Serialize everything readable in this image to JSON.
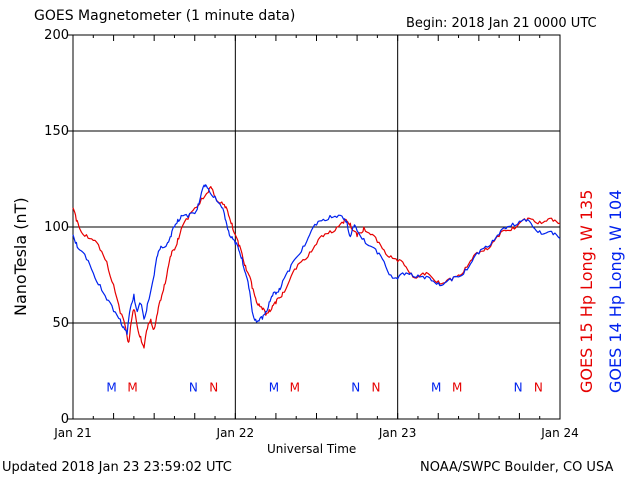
{
  "title": "GOES Magnetometer (1 minute data)",
  "begin_label": "Begin:  2018 Jan 21 0000 UTC",
  "updated": "Updated 2018 Jan 23 23:59:02 UTC",
  "credit": "NOAA/SWPC Boulder, CO USA",
  "colors": {
    "goes15": "#e60000",
    "goes14": "#0022ee",
    "grid": "#000000"
  },
  "chart_data": {
    "type": "line",
    "ylabel": "NanoTesla (nT)",
    "xlabel": "Universal Time",
    "ylim": [
      0,
      200
    ],
    "yticks": [
      "0",
      "50",
      "100",
      "150",
      "200"
    ],
    "xlim_hours": [
      0,
      72
    ],
    "xticks": [
      {
        "label": "Jan 21",
        "hour": 0
      },
      {
        "label": "Jan 22",
        "hour": 24
      },
      {
        "label": "Jan 23",
        "hour": 48
      },
      {
        "label": "Jan 24",
        "hour": 72
      }
    ],
    "grid": true,
    "series": [
      {
        "name": "GOES 15 Hp  Long. W 135",
        "color_key": "goes15",
        "points": [
          [
            0,
            110
          ],
          [
            0.5,
            103
          ],
          [
            1,
            99
          ],
          [
            2,
            96
          ],
          [
            3,
            93
          ],
          [
            4,
            88
          ],
          [
            5,
            82
          ],
          [
            6,
            70
          ],
          [
            7,
            55
          ],
          [
            7.8,
            47
          ],
          [
            8.2,
            40
          ],
          [
            8.5,
            48
          ],
          [
            9,
            57
          ],
          [
            9.5,
            48
          ],
          [
            10,
            43
          ],
          [
            10.5,
            37
          ],
          [
            11,
            47
          ],
          [
            11.5,
            52
          ],
          [
            12,
            47
          ],
          [
            12.5,
            55
          ],
          [
            13,
            62
          ],
          [
            13.5,
            70
          ],
          [
            14,
            78
          ],
          [
            14.5,
            85
          ],
          [
            15,
            88
          ],
          [
            15.5,
            94
          ],
          [
            16,
            99
          ],
          [
            17,
            104
          ],
          [
            18,
            110
          ],
          [
            19,
            115
          ],
          [
            20,
            118
          ],
          [
            20.5,
            120
          ],
          [
            21,
            116
          ],
          [
            22,
            113
          ],
          [
            22.5,
            110
          ],
          [
            23,
            106
          ],
          [
            23.5,
            102
          ],
          [
            24,
            96
          ],
          [
            24.5,
            90
          ],
          [
            25,
            86
          ],
          [
            25.5,
            80
          ],
          [
            26,
            75
          ],
          [
            26.5,
            68
          ],
          [
            27,
            63
          ],
          [
            27.5,
            60
          ],
          [
            28,
            57
          ],
          [
            28.5,
            54
          ],
          [
            29,
            57
          ],
          [
            29.5,
            59
          ],
          [
            30,
            60
          ],
          [
            30.5,
            63
          ],
          [
            31,
            66
          ],
          [
            32,
            72
          ],
          [
            33,
            78
          ],
          [
            34,
            83
          ],
          [
            35,
            87
          ],
          [
            36,
            91
          ],
          [
            37,
            95
          ],
          [
            38,
            98
          ],
          [
            39,
            100
          ],
          [
            40,
            102
          ],
          [
            40.5,
            103
          ],
          [
            41,
            102
          ],
          [
            41.5,
            98
          ],
          [
            42,
            95
          ],
          [
            42.5,
            97
          ],
          [
            43,
            100
          ],
          [
            44,
            96
          ],
          [
            45,
            92
          ],
          [
            46,
            88
          ],
          [
            47,
            85
          ],
          [
            48,
            82
          ],
          [
            49,
            80
          ],
          [
            50,
            76
          ],
          [
            51,
            74
          ],
          [
            52,
            75
          ],
          [
            53,
            74
          ],
          [
            54,
            72
          ],
          [
            55,
            71
          ],
          [
            56,
            72
          ],
          [
            57,
            75
          ],
          [
            58,
            79
          ],
          [
            59,
            83
          ],
          [
            60,
            86
          ],
          [
            61,
            89
          ],
          [
            62,
            92
          ],
          [
            63,
            95
          ],
          [
            64,
            98
          ],
          [
            65,
            100
          ],
          [
            66,
            102
          ],
          [
            67,
            103
          ],
          [
            68,
            104
          ],
          [
            69,
            103
          ],
          [
            70,
            103
          ],
          [
            71,
            103
          ],
          [
            72,
            102
          ]
        ]
      },
      {
        "name": "GOES 14 Hp  Long. W 104",
        "color_key": "goes14",
        "points": [
          [
            0,
            96
          ],
          [
            0.5,
            92
          ],
          [
            1,
            88
          ],
          [
            2,
            83
          ],
          [
            3,
            76
          ],
          [
            4,
            70
          ],
          [
            5,
            62
          ],
          [
            6,
            56
          ],
          [
            7,
            52
          ],
          [
            7.5,
            48
          ],
          [
            8,
            44
          ],
          [
            8.5,
            58
          ],
          [
            9,
            65
          ],
          [
            9.5,
            56
          ],
          [
            10,
            60
          ],
          [
            10.5,
            52
          ],
          [
            11,
            60
          ],
          [
            12,
            75
          ],
          [
            12.5,
            85
          ],
          [
            13,
            90
          ],
          [
            14,
            92
          ],
          [
            14.5,
            95
          ],
          [
            15,
            100
          ],
          [
            15.5,
            104
          ],
          [
            16,
            106
          ],
          [
            17,
            105
          ],
          [
            18,
            107
          ],
          [
            18.5,
            112
          ],
          [
            19,
            118
          ],
          [
            19.5,
            121
          ],
          [
            20,
            120
          ],
          [
            21,
            116
          ],
          [
            22,
            110
          ],
          [
            22.5,
            104
          ],
          [
            23,
            98
          ],
          [
            23.5,
            95
          ],
          [
            24,
            91
          ],
          [
            24.5,
            88
          ],
          [
            25,
            84
          ],
          [
            25.5,
            76
          ],
          [
            26,
            68
          ],
          [
            26.5,
            56
          ],
          [
            27,
            52
          ],
          [
            27.5,
            51
          ],
          [
            28,
            52
          ],
          [
            28.5,
            56
          ],
          [
            29,
            61
          ],
          [
            29.5,
            64
          ],
          [
            30,
            65
          ],
          [
            30.5,
            68
          ],
          [
            31,
            72
          ],
          [
            32,
            77
          ],
          [
            33,
            84
          ],
          [
            34,
            90
          ],
          [
            35,
            96
          ],
          [
            36,
            101
          ],
          [
            37,
            104
          ],
          [
            38,
            106
          ],
          [
            39,
            105
          ],
          [
            40,
            104
          ],
          [
            40.5,
            103
          ],
          [
            41,
            95
          ],
          [
            41.5,
            100
          ],
          [
            42,
            98
          ],
          [
            43,
            94
          ],
          [
            44,
            90
          ],
          [
            45,
            86
          ],
          [
            46,
            82
          ],
          [
            47,
            75
          ],
          [
            48,
            73
          ],
          [
            49,
            75
          ],
          [
            50,
            76
          ],
          [
            51,
            75
          ],
          [
            52,
            73
          ],
          [
            53,
            72
          ],
          [
            54,
            71
          ],
          [
            55,
            71
          ],
          [
            56,
            72
          ],
          [
            57,
            74
          ],
          [
            58,
            78
          ],
          [
            59,
            82
          ],
          [
            60,
            86
          ],
          [
            61,
            90
          ],
          [
            62,
            93
          ],
          [
            63,
            96
          ],
          [
            64,
            99
          ],
          [
            65,
            102
          ],
          [
            66,
            103
          ],
          [
            67,
            103
          ],
          [
            68,
            100
          ],
          [
            69,
            98
          ],
          [
            70,
            97
          ],
          [
            71,
            96
          ],
          [
            72,
            94
          ]
        ]
      }
    ],
    "markers": [
      {
        "label": "M",
        "hour": 5.7,
        "color_key": "goes14"
      },
      {
        "label": "M",
        "hour": 8.8,
        "color_key": "goes15"
      },
      {
        "label": "N",
        "hour": 17.8,
        "color_key": "goes14"
      },
      {
        "label": "N",
        "hour": 20.8,
        "color_key": "goes15"
      },
      {
        "label": "M",
        "hour": 29.7,
        "color_key": "goes14"
      },
      {
        "label": "M",
        "hour": 32.8,
        "color_key": "goes15"
      },
      {
        "label": "N",
        "hour": 41.8,
        "color_key": "goes14"
      },
      {
        "label": "N",
        "hour": 44.8,
        "color_key": "goes15"
      },
      {
        "label": "M",
        "hour": 53.7,
        "color_key": "goes14"
      },
      {
        "label": "M",
        "hour": 56.8,
        "color_key": "goes15"
      },
      {
        "label": "N",
        "hour": 65.8,
        "color_key": "goes14"
      },
      {
        "label": "N",
        "hour": 68.8,
        "color_key": "goes15"
      }
    ],
    "marker_level": 17
  }
}
